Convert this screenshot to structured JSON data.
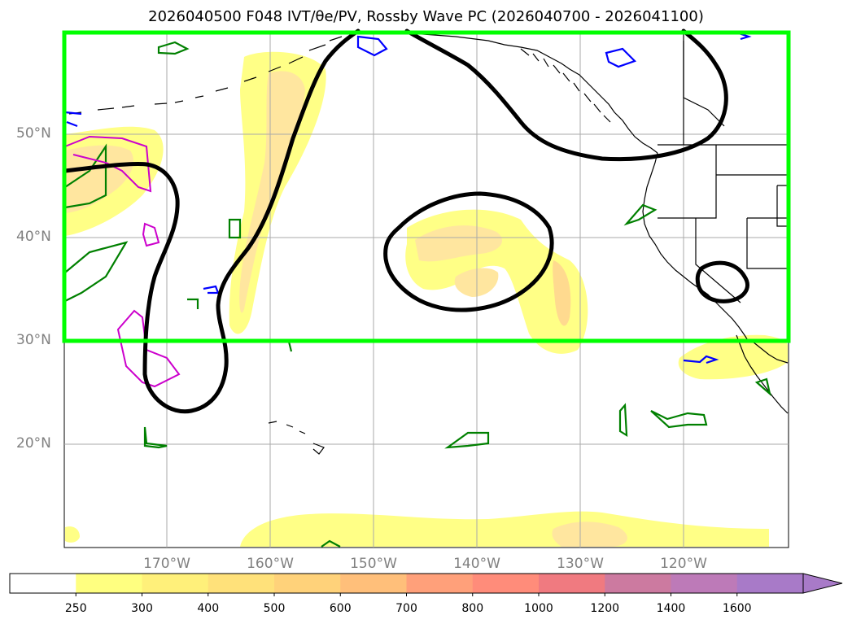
{
  "title": "2026040500 F048 IVT/θe/PV, Rossby Wave PC (2026040700 - 2026041100)",
  "lat_labels": [
    "50°N",
    "40°N",
    "30°N",
    "20°N"
  ],
  "lon_labels": [
    "170°W",
    "160°W",
    "150°W",
    "140°W",
    "130°W",
    "120°W"
  ],
  "colorbar": {
    "ticks": [
      "250",
      "300",
      "400",
      "500",
      "600",
      "700",
      "800",
      "1000",
      "1200",
      "1400",
      "1600"
    ],
    "colors": [
      "#ffffff",
      "#ffff80",
      "#fff07a",
      "#ffe17a",
      "#ffd27a",
      "#ffbf7a",
      "#ffa07a",
      "#ff8c7a",
      "#f07a80",
      "#cc7aa0",
      "#bd7ab8",
      "#a87ac8"
    ],
    "extend": "max"
  },
  "colors": {
    "box": "#00ff00",
    "pc_contour": "#000000",
    "theta_e": "#008000",
    "pv_blue": "#0000ff",
    "pv_magenta": "#cc00cc",
    "ivt_fill": "#ffff80"
  },
  "features": {
    "highlight_box": "green-rectangle",
    "contours": [
      "rossby-wave-pc",
      "theta-e",
      "pv"
    ],
    "filled": "ivt"
  }
}
